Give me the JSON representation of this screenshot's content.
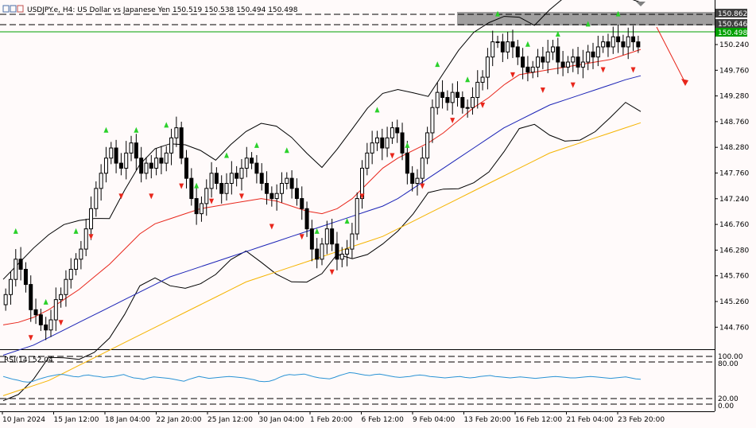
{
  "window": {
    "title": "USDJPY.e, H4:  US Dollar vs Japanese Yen  150.519 150.538 150.494 150.498",
    "icon": "chart-icon"
  },
  "indicator": {
    "label": "RSI(14) 52.04"
  },
  "colors": {
    "background": "#fffafa",
    "bull_candle": "#000000",
    "bear_candle": "#000000",
    "ma_fast": "#e8261b",
    "ma_slow": "#1b23b6",
    "ma_long": "#f5b400",
    "bands": "#000000",
    "rsi": "#2a93d5",
    "arrow_up": "#2bd12b",
    "arrow_down": "#e8261b",
    "resistance_zone": "#808080",
    "last_price_tag": "#00a000",
    "current_line": "#00a000"
  },
  "price_axis": {
    "labels": [
      "150.240",
      "149.760",
      "149.280",
      "148.760",
      "148.280",
      "147.760",
      "147.240",
      "146.760",
      "146.280",
      "145.760",
      "145.260",
      "144.760"
    ],
    "tags": {
      "high": "150.862",
      "mid": "150.646",
      "last": "150.498"
    }
  },
  "rsi_axis": {
    "labels": [
      "100.00",
      "80.00",
      "20.00",
      "0.00"
    ]
  },
  "time_axis": {
    "labels": [
      "10 Jan 2024",
      "15 Jan 12:00",
      "18 Jan 04:00",
      "22 Jan 20:00",
      "25 Jan 12:00",
      "30 Jan 04:00",
      "1 Feb 20:00",
      "6 Feb 12:00",
      "9 Feb 04:00",
      "13 Feb 20:00",
      "16 Feb 12:00",
      "21 Feb 04:00",
      "23 Feb 20:00"
    ]
  },
  "chart_data": {
    "type": "candlestick",
    "symbol": "USDJPY.e",
    "timeframe": "H4",
    "ylim": [
      144.55,
      151.05
    ],
    "last_bar": {
      "open": 150.519,
      "high": 150.538,
      "low": 150.494,
      "close": 150.498
    },
    "closes": [
      145.6,
      145.9,
      146.3,
      146.1,
      145.8,
      145.3,
      145.2,
      145.0,
      144.9,
      145.1,
      145.5,
      145.6,
      145.9,
      146.1,
      146.3,
      146.5,
      146.9,
      147.3,
      147.7,
      148.0,
      148.3,
      148.5,
      148.2,
      148.1,
      148.4,
      148.6,
      148.3,
      148.0,
      148.2,
      148.1,
      148.3,
      148.2,
      148.4,
      148.7,
      148.9,
      148.3,
      147.9,
      147.5,
      147.2,
      147.4,
      147.7,
      148.0,
      147.8,
      147.6,
      147.8,
      148.0,
      147.9,
      148.1,
      148.3,
      148.2,
      148.0,
      147.8,
      147.6,
      147.5,
      147.6,
      147.8,
      147.9,
      147.7,
      147.5,
      147.3,
      146.9,
      146.5,
      146.3,
      146.6,
      146.9,
      146.6,
      146.3,
      146.4,
      146.5,
      146.8,
      147.5,
      148.1,
      148.4,
      148.6,
      148.7,
      148.5,
      148.7,
      148.9,
      148.8,
      148.4,
      148.0,
      147.8,
      147.9,
      148.3,
      148.8,
      149.3,
      149.6,
      149.5,
      149.4,
      149.6,
      149.5,
      149.3,
      149.3,
      149.5,
      149.8,
      149.9,
      150.3,
      150.6,
      150.6,
      150.4,
      150.6,
      150.5,
      150.3,
      150.1,
      150.0,
      150.1,
      150.3,
      150.2,
      150.4,
      150.5,
      150.2,
      150.1,
      150.2,
      150.3,
      150.1,
      150.2,
      150.4,
      150.3,
      150.5,
      150.6,
      150.5,
      150.7,
      150.6,
      150.5,
      150.7,
      150.6,
      150.5
    ],
    "ma_fast": [
      145.0,
      145.05,
      145.15,
      145.3,
      145.5,
      145.7,
      145.95,
      146.2,
      146.5,
      146.8,
      147.0,
      147.1,
      147.2,
      147.3,
      147.35,
      147.4,
      147.45,
      147.5,
      147.45,
      147.35,
      147.25,
      147.2,
      147.3,
      147.5,
      147.8,
      148.1,
      148.3,
      148.45,
      148.6,
      148.8,
      149.05,
      149.3,
      149.5,
      149.75,
      149.95,
      150.0,
      150.05,
      150.1,
      150.15,
      150.2,
      150.25,
      150.35,
      150.45
    ],
    "ma_slow": [
      144.4,
      144.5,
      144.6,
      144.75,
      144.9,
      145.05,
      145.2,
      145.35,
      145.5,
      145.65,
      145.8,
      145.95,
      146.05,
      146.15,
      146.25,
      146.35,
      146.45,
      146.55,
      146.65,
      146.75,
      146.85,
      146.95,
      147.05,
      147.15,
      147.25,
      147.35,
      147.5,
      147.7,
      147.9,
      148.1,
      148.3,
      148.5,
      148.7,
      148.9,
      149.05,
      149.2,
      149.35,
      149.45,
      149.55,
      149.65,
      149.75,
      149.85,
      149.93
    ],
    "ma_long": [
      143.6,
      143.7,
      143.8,
      143.9,
      144.05,
      144.2,
      144.35,
      144.5,
      144.65,
      144.8,
      144.95,
      145.1,
      145.25,
      145.4,
      145.55,
      145.7,
      145.85,
      145.95,
      146.05,
      146.15,
      146.25,
      146.35,
      146.45,
      146.55,
      146.65,
      146.75,
      146.9,
      147.05,
      147.2,
      147.35,
      147.5,
      147.65,
      147.8,
      147.95,
      148.1,
      148.25,
      148.4,
      148.5,
      148.6,
      148.7,
      148.8,
      148.9,
      149.0
    ],
    "rsi": [
      58,
      55,
      52,
      50,
      47,
      46,
      48,
      52,
      55,
      58,
      60,
      62,
      62,
      60,
      58,
      57,
      60,
      61,
      59,
      58,
      56,
      57,
      58,
      60,
      62,
      58,
      55,
      54,
      52,
      55,
      57,
      56,
      55,
      54,
      52,
      50,
      48,
      52,
      55,
      58,
      56,
      54,
      55,
      56,
      57,
      58,
      57,
      56,
      55,
      53,
      51,
      48,
      47,
      48,
      51,
      56,
      60,
      62,
      61,
      62,
      63,
      60,
      57,
      55,
      54,
      53,
      56,
      60,
      63,
      66,
      65,
      63,
      61,
      60,
      62,
      63,
      61,
      59,
      57,
      56,
      57,
      58,
      60,
      61,
      60,
      58,
      57,
      56,
      55,
      56,
      57,
      58,
      56,
      55,
      56,
      58,
      59,
      60,
      58,
      57,
      56,
      55,
      56,
      57,
      56,
      55,
      54,
      55,
      56,
      57,
      58,
      57,
      56,
      55,
      55,
      56,
      57,
      58,
      57,
      56,
      55,
      54,
      55,
      56,
      57,
      55,
      53,
      52
    ]
  }
}
